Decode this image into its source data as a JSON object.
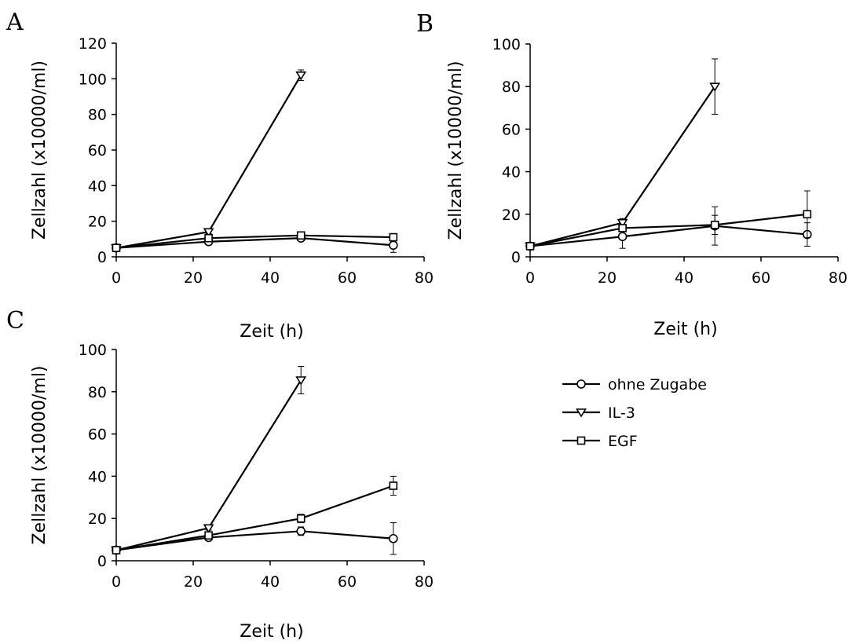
{
  "figure": {
    "legend": {
      "placement": "right-middle",
      "entries": [
        {
          "name": "ohne Zugabe",
          "marker": "circle"
        },
        {
          "name": "IL-3",
          "marker": "triangle-down"
        },
        {
          "name": "EGF",
          "marker": "square"
        }
      ]
    }
  },
  "chart_data": [
    {
      "type": "line",
      "panel_label": "A",
      "xlabel": "Zeit (h)",
      "ylabel": "Zellzahl (x10000/ml)",
      "xlim": [
        0,
        80
      ],
      "ylim": [
        0,
        120
      ],
      "xticks": [
        0,
        20,
        40,
        60,
        80
      ],
      "yticks": [
        0,
        20,
        40,
        60,
        80,
        100,
        120
      ],
      "grid": false,
      "series": [
        {
          "name": "ohne Zugabe",
          "marker": "circle",
          "x": [
            0,
            24,
            48,
            72
          ],
          "y": [
            5,
            8.5,
            10.5,
            6.5
          ],
          "err": [
            0.5,
            1,
            1.5,
            4
          ]
        },
        {
          "name": "IL-3",
          "marker": "triangle-down",
          "x": [
            0,
            24,
            48
          ],
          "y": [
            5,
            14,
            102
          ],
          "err": [
            0.5,
            1,
            3
          ]
        },
        {
          "name": "EGF",
          "marker": "square",
          "x": [
            0,
            24,
            48,
            72
          ],
          "y": [
            5,
            10.5,
            12,
            11
          ],
          "err": [
            0.5,
            1,
            1.5,
            1.5
          ]
        }
      ]
    },
    {
      "type": "line",
      "panel_label": "B",
      "xlabel": "Zeit (h)",
      "ylabel": "Zellzahl (x10000/ml)",
      "xlim": [
        0,
        80
      ],
      "ylim": [
        0,
        100
      ],
      "xticks": [
        0,
        20,
        40,
        60,
        80
      ],
      "yticks": [
        0,
        20,
        40,
        60,
        80,
        100
      ],
      "grid": false,
      "series": [
        {
          "name": "ohne Zugabe",
          "marker": "circle",
          "x": [
            0,
            24,
            48,
            72
          ],
          "y": [
            5,
            9.5,
            14.5,
            10.5
          ],
          "err": [
            0.5,
            5.5,
            9,
            5.5
          ]
        },
        {
          "name": "IL-3",
          "marker": "triangle-down",
          "x": [
            0,
            24,
            48
          ],
          "y": [
            5,
            16,
            80
          ],
          "err": [
            0.5,
            2,
            13
          ]
        },
        {
          "name": "EGF",
          "marker": "square",
          "x": [
            0,
            24,
            48,
            72
          ],
          "y": [
            5,
            13.5,
            15,
            20
          ],
          "err": [
            0.5,
            1.5,
            4.5,
            11
          ]
        }
      ]
    },
    {
      "type": "line",
      "panel_label": "C",
      "xlabel": "Zeit (h)",
      "ylabel": "Zellzahl (x10000/ml)",
      "xlim": [
        0,
        80
      ],
      "ylim": [
        0,
        100
      ],
      "xticks": [
        0,
        20,
        40,
        60,
        80
      ],
      "yticks": [
        0,
        20,
        40,
        60,
        80,
        100
      ],
      "grid": false,
      "series": [
        {
          "name": "ohne Zugabe",
          "marker": "circle",
          "x": [
            0,
            24,
            48,
            72
          ],
          "y": [
            5,
            11,
            14,
            10.5
          ],
          "err": [
            0.5,
            1,
            2,
            7.5
          ]
        },
        {
          "name": "IL-3",
          "marker": "triangle-down",
          "x": [
            0,
            24,
            48
          ],
          "y": [
            5,
            15.5,
            85.5
          ],
          "err": [
            0.5,
            1,
            6.5
          ]
        },
        {
          "name": "EGF",
          "marker": "square",
          "x": [
            0,
            24,
            48,
            72
          ],
          "y": [
            5,
            12,
            20,
            35.5
          ],
          "err": [
            0.5,
            1,
            2,
            4.5
          ]
        }
      ]
    }
  ]
}
